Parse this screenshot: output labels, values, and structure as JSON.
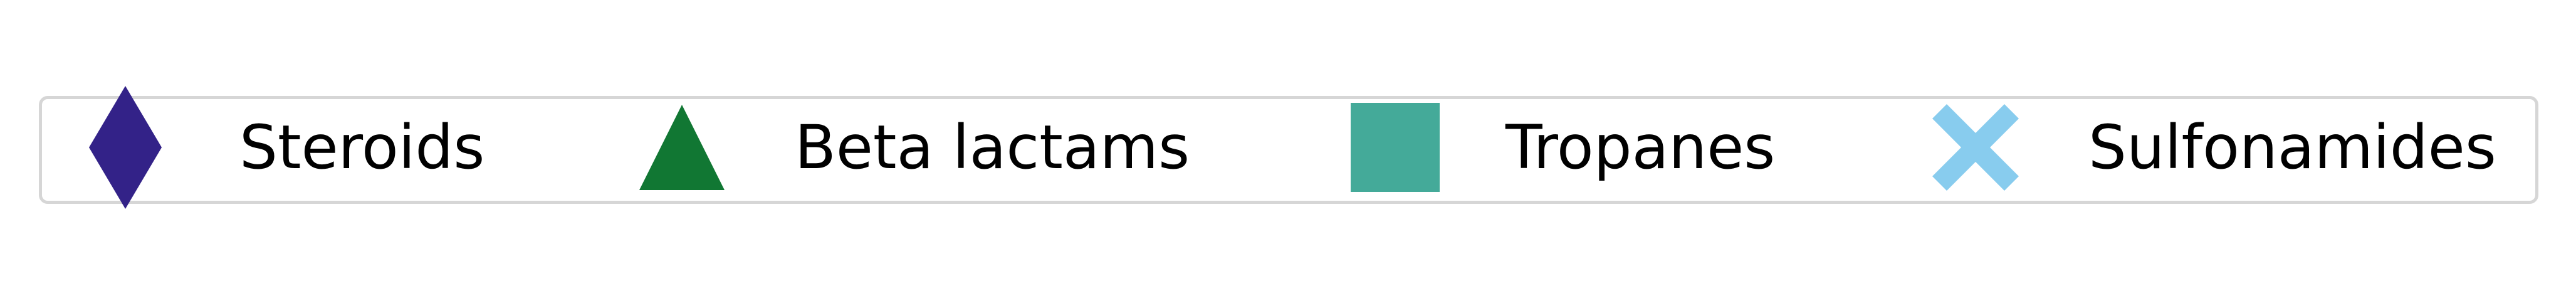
{
  "chart_data": {
    "type": "legend",
    "legend": {
      "placement": "center",
      "entries": [
        {
          "label": "Steroids",
          "marker": "thin-diamond",
          "color": "#332288"
        },
        {
          "label": "Beta lactams",
          "marker": "triangle-up",
          "color": "#117733"
        },
        {
          "label": "Tropanes",
          "marker": "square",
          "color": "#44AA99"
        },
        {
          "label": "Sulfonamides",
          "marker": "x-filled",
          "color": "#88CCEE"
        }
      ]
    }
  }
}
